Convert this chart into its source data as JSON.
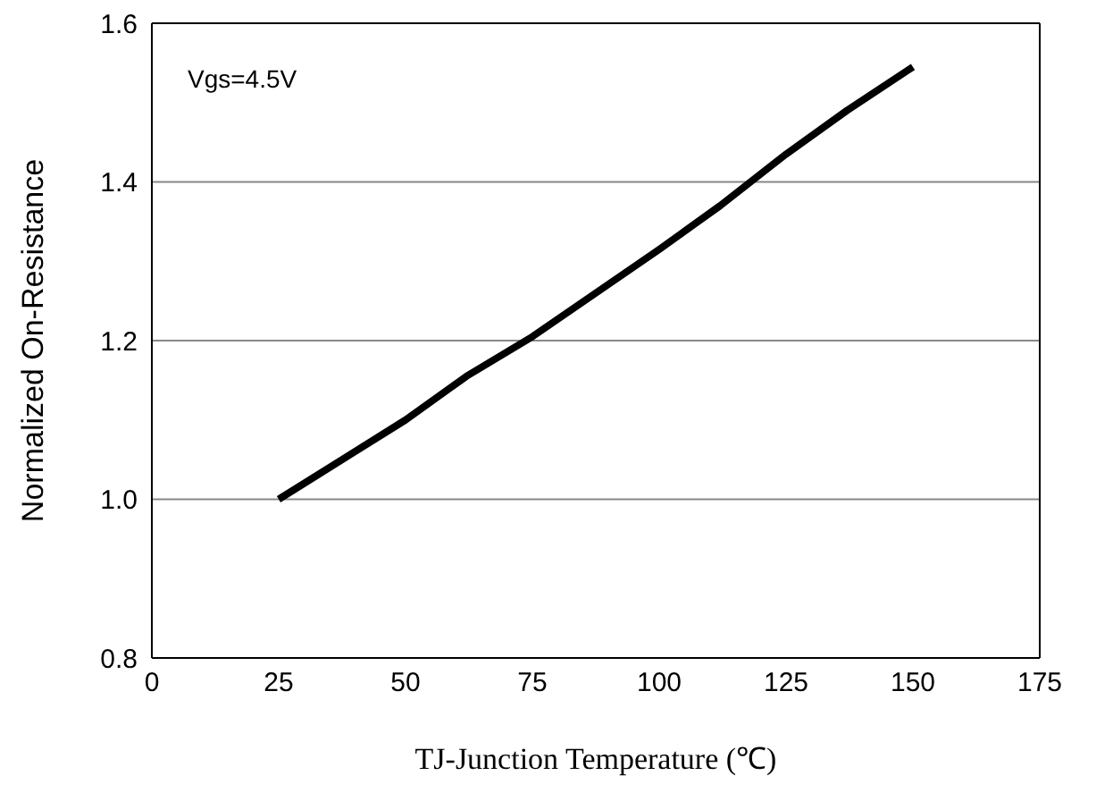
{
  "chart_data": {
    "type": "line",
    "xlabel": "TJ-Junction Temperature (℃)",
    "ylabel": "Normalized On-Resistance",
    "annotations": [
      "Vgs=4.5V"
    ],
    "x": [
      25,
      50,
      62,
      75,
      100,
      112,
      125,
      137,
      150
    ],
    "series": [
      {
        "color": "#000000",
        "values": [
          1.0,
          1.1,
          1.155,
          1.205,
          1.315,
          1.37,
          1.435,
          1.49,
          1.545
        ]
      }
    ],
    "xlim": [
      0,
      175
    ],
    "xticks": [
      0,
      25,
      50,
      75,
      100,
      125,
      150,
      175
    ],
    "ylim": [
      0.8,
      1.6
    ],
    "yticks": [
      {
        "value": 0.8,
        "label": "0.8"
      },
      {
        "value": 1.0,
        "label": "1.0"
      },
      {
        "value": 1.2,
        "label": "1.2"
      },
      {
        "value": 1.4,
        "label": "1.4"
      },
      {
        "value": 1.6,
        "label": "1.6"
      }
    ],
    "grid": "y",
    "marker": "none",
    "line_style": "solid"
  }
}
